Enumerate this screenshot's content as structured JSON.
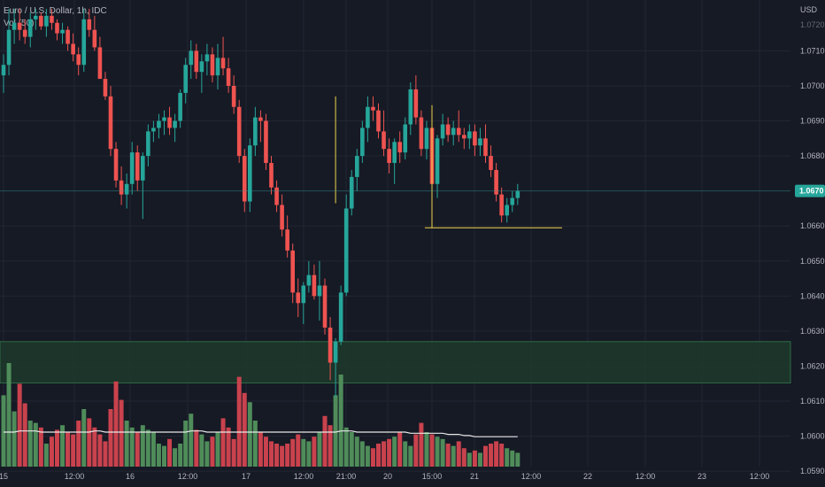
{
  "symbol": {
    "title": "Euro / U.S. Dollar, 1h, IDC",
    "volume_label": "Vol (50)"
  },
  "price_axis": {
    "currency": "USD",
    "top_label": "1.0720",
    "labels": [
      "1.0710",
      "1.0700",
      "1.0690",
      "1.0680",
      "1.0670",
      "1.0660",
      "1.0650",
      "1.0640",
      "1.0630",
      "1.0620",
      "1.0610",
      "1.0600",
      "1.0590"
    ],
    "current_price": "1.0670"
  },
  "time_axis": {
    "labels": [
      "15",
      "12:00",
      "16",
      "12:00",
      "17",
      "12:00",
      "21:00",
      "20",
      "15:00",
      "21",
      "12:00",
      "22",
      "12:00",
      "23",
      "12:00"
    ]
  },
  "colors": {
    "background": "#161a25",
    "grid": "#222632",
    "bull": "#26a69a",
    "bear": "#ef5350",
    "vol_bull": "#4f8c5a",
    "vol_bear": "#c9424d",
    "support_zone_fill": "#1d3a2b",
    "support_zone_border": "#2f6b44",
    "annotation": "#f0d34c",
    "price_tag": "#26a69a",
    "axis_text": "#b2b5be",
    "ma_line": "#e8e8e8"
  },
  "annotations": [
    {
      "type": "support-zone",
      "from_price": 1.06152,
      "to_price": 1.0627
    },
    {
      "type": "vertical-line",
      "bar": 62,
      "from_price": 1.06665,
      "to_price": 1.0697
    },
    {
      "type": "vertical-line",
      "bar": 80,
      "from_price": 1.06595,
      "to_price": 1.06945
    },
    {
      "type": "horizontal-line",
      "from_bar": 79,
      "to_bar": 100,
      "price": 1.06595
    }
  ],
  "chart_data": {
    "type": "candlestick",
    "series": [
      {
        "name": "Vol (50)"
      }
    ],
    "ylim": [
      1.0586,
      1.0723
    ],
    "candles": [
      [
        1.0703,
        1.0709,
        1.0698,
        1.0706
      ],
      [
        1.0706,
        1.0722,
        1.0703,
        1.0716
      ],
      [
        1.0716,
        1.0722,
        1.0712,
        1.0718
      ],
      [
        1.0718,
        1.0722,
        1.0713,
        1.0716
      ],
      [
        1.0716,
        1.0719,
        1.0712,
        1.0714
      ],
      [
        1.0714,
        1.0721,
        1.0711,
        1.0719
      ],
      [
        1.0719,
        1.0722,
        1.0716,
        1.072
      ],
      [
        1.072,
        1.0721,
        1.0716,
        1.0717
      ],
      [
        1.0717,
        1.0722,
        1.0714,
        1.072
      ],
      [
        1.072,
        1.0722,
        1.0716,
        1.0718
      ],
      [
        1.0718,
        1.0719,
        1.0713,
        1.0715
      ],
      [
        1.0715,
        1.0718,
        1.0712,
        1.0716
      ],
      [
        1.0716,
        1.0717,
        1.071,
        1.0712
      ],
      [
        1.0712,
        1.0715,
        1.0707,
        1.0709
      ],
      [
        1.0709,
        1.0711,
        1.0703,
        1.0706
      ],
      [
        1.0706,
        1.0722,
        1.0704,
        1.0719
      ],
      [
        1.0719,
        1.0722,
        1.0714,
        1.0716
      ],
      [
        1.0716,
        1.072,
        1.071,
        1.0711
      ],
      [
        1.0711,
        1.0714,
        1.0702,
        1.0702
      ],
      [
        1.0702,
        1.0704,
        1.0696,
        1.0697
      ],
      [
        1.0697,
        1.07,
        1.068,
        1.0682
      ],
      [
        1.0682,
        1.0684,
        1.0671,
        1.0673
      ],
      [
        1.0673,
        1.0677,
        1.0666,
        1.0669
      ],
      [
        1.0669,
        1.0675,
        1.0665,
        1.0672
      ],
      [
        1.0672,
        1.0684,
        1.0669,
        1.0681
      ],
      [
        1.0681,
        1.0683,
        1.067,
        1.0673
      ],
      [
        1.0673,
        1.0681,
        1.0662,
        1.068
      ],
      [
        1.068,
        1.0689,
        1.0677,
        1.0687
      ],
      [
        1.0687,
        1.069,
        1.0684,
        1.0688
      ],
      [
        1.0688,
        1.0692,
        1.0685,
        1.069
      ],
      [
        1.069,
        1.0693,
        1.0686,
        1.0691
      ],
      [
        1.0691,
        1.0694,
        1.0686,
        1.0688
      ],
      [
        1.0688,
        1.0692,
        1.0684,
        1.069
      ],
      [
        1.069,
        1.0699,
        1.0688,
        1.0698
      ],
      [
        1.0698,
        1.0708,
        1.0695,
        1.0706
      ],
      [
        1.0706,
        1.0713,
        1.0702,
        1.071
      ],
      [
        1.071,
        1.0712,
        1.0702,
        1.0704
      ],
      [
        1.0704,
        1.0709,
        1.0698,
        1.0707
      ],
      [
        1.0707,
        1.0712,
        1.0703,
        1.0709
      ],
      [
        1.0709,
        1.0711,
        1.0701,
        1.0703
      ],
      [
        1.0703,
        1.0712,
        1.0699,
        1.0708
      ],
      [
        1.0708,
        1.0714,
        1.0703,
        1.0705
      ],
      [
        1.0705,
        1.0708,
        1.0698,
        1.07
      ],
      [
        1.07,
        1.0703,
        1.0692,
        1.0694
      ],
      [
        1.0694,
        1.0696,
        1.0678,
        1.068
      ],
      [
        1.068,
        1.0682,
        1.0664,
        1.0667
      ],
      [
        1.0667,
        1.0685,
        1.0664,
        1.0683
      ],
      [
        1.0683,
        1.0694,
        1.068,
        1.0691
      ],
      [
        1.0691,
        1.0693,
        1.0684,
        1.069
      ],
      [
        1.069,
        1.0692,
        1.0676,
        1.0678
      ],
      [
        1.0678,
        1.068,
        1.0669,
        1.0671
      ],
      [
        1.0671,
        1.0673,
        1.0664,
        1.0666
      ],
      [
        1.0666,
        1.0669,
        1.0657,
        1.0659
      ],
      [
        1.0659,
        1.0663,
        1.0651,
        1.0653
      ],
      [
        1.0653,
        1.0655,
        1.0638,
        1.0641
      ],
      [
        1.0641,
        1.0645,
        1.0634,
        1.0638
      ],
      [
        1.0638,
        1.0644,
        1.0632,
        1.0643
      ],
      [
        1.0643,
        1.065,
        1.0641,
        1.0646
      ],
      [
        1.0646,
        1.0649,
        1.0639,
        1.064
      ],
      [
        1.064,
        1.065,
        1.0633,
        1.0643
      ],
      [
        1.0643,
        1.0645,
        1.0629,
        1.0631
      ],
      [
        1.0631,
        1.0634,
        1.0616,
        1.0621
      ],
      [
        1.0621,
        1.0628,
        1.0611,
        1.0627
      ],
      [
        1.0627,
        1.0643,
        1.0626,
        1.0641
      ],
      [
        1.0641,
        1.0669,
        1.064,
        1.0665
      ],
      [
        1.0665,
        1.0676,
        1.0663,
        1.0674
      ],
      [
        1.0674,
        1.0682,
        1.067,
        1.068
      ],
      [
        1.068,
        1.069,
        1.0678,
        1.0688
      ],
      [
        1.0688,
        1.0697,
        1.0684,
        1.0694
      ],
      [
        1.0694,
        1.0697,
        1.069,
        1.0693
      ],
      [
        1.0693,
        1.0695,
        1.0685,
        1.0687
      ],
      [
        1.0687,
        1.0693,
        1.068,
        1.0682
      ],
      [
        1.0682,
        1.0685,
        1.0675,
        1.0678
      ],
      [
        1.0678,
        1.0685,
        1.0672,
        1.0684
      ],
      [
        1.0684,
        1.0687,
        1.0678,
        1.0681
      ],
      [
        1.0681,
        1.0691,
        1.0679,
        1.0689
      ],
      [
        1.0689,
        1.0701,
        1.0686,
        1.0699
      ],
      [
        1.0699,
        1.0703,
        1.0689,
        1.0691
      ],
      [
        1.0691,
        1.0693,
        1.068,
        1.0682
      ],
      [
        1.0682,
        1.069,
        1.0679,
        1.0688
      ],
      [
        1.0688,
        1.069,
        1.067,
        1.0672
      ],
      [
        1.0672,
        1.0686,
        1.0668,
        1.0685
      ],
      [
        1.0685,
        1.0692,
        1.0683,
        1.0689
      ],
      [
        1.0689,
        1.0691,
        1.0684,
        1.0686
      ],
      [
        1.0686,
        1.069,
        1.0683,
        1.0688
      ],
      [
        1.0688,
        1.0693,
        1.0684,
        1.0686
      ],
      [
        1.0686,
        1.0688,
        1.0682,
        1.0685
      ],
      [
        1.0685,
        1.0689,
        1.0682,
        1.0687
      ],
      [
        1.0687,
        1.0689,
        1.068,
        1.0683
      ],
      [
        1.0683,
        1.0688,
        1.068,
        1.0685
      ],
      [
        1.0685,
        1.0689,
        1.0678,
        1.068
      ],
      [
        1.068,
        1.0683,
        1.0674,
        1.0676
      ],
      [
        1.0676,
        1.0678,
        1.0667,
        1.0669
      ],
      [
        1.0669,
        1.0671,
        1.0661,
        1.0663
      ],
      [
        1.0663,
        1.0668,
        1.0661,
        1.0666
      ],
      [
        1.0666,
        1.067,
        1.0664,
        1.0668
      ],
      [
        1.0668,
        1.0672,
        1.0666,
        1.067
      ]
    ],
    "volume": [
      62,
      90,
      48,
      72,
      55,
      40,
      38,
      34,
      20,
      26,
      32,
      36,
      30,
      28,
      40,
      50,
      42,
      34,
      28,
      22,
      50,
      74,
      58,
      40,
      34,
      30,
      36,
      32,
      30,
      20,
      18,
      24,
      16,
      20,
      40,
      46,
      32,
      28,
      22,
      26,
      30,
      42,
      34,
      24,
      78,
      64,
      56,
      40,
      30,
      26,
      22,
      20,
      18,
      20,
      24,
      28,
      24,
      22,
      26,
      30,
      44,
      36,
      62,
      80,
      34,
      30,
      26,
      22,
      18,
      16,
      20,
      22,
      24,
      26,
      30,
      22,
      18,
      28,
      38,
      30,
      28,
      26,
      24,
      20,
      18,
      22,
      16,
      12,
      14,
      12,
      18,
      20,
      22,
      20,
      16,
      14,
      12
    ],
    "volume_ma": [
      30,
      30,
      30,
      31,
      31,
      31,
      31,
      30,
      30,
      30,
      30,
      30,
      30,
      30,
      30,
      30,
      30,
      31,
      31,
      30,
      30,
      30,
      30,
      30,
      30,
      30,
      30,
      30,
      30,
      30,
      30,
      30,
      30,
      30,
      30,
      31,
      31,
      31,
      30,
      30,
      30,
      30,
      30,
      30,
      30,
      30,
      30,
      30,
      30,
      30,
      30,
      30,
      30,
      30,
      30,
      30,
      30,
      30,
      30,
      30,
      30,
      30,
      30,
      31,
      31,
      31,
      30,
      30,
      30,
      30,
      30,
      30,
      30,
      30,
      30,
      30,
      29,
      29,
      29,
      29,
      29,
      29,
      29,
      28,
      28,
      28,
      27,
      27,
      26,
      26,
      26,
      26,
      26,
      26,
      26,
      26,
      26
    ]
  }
}
